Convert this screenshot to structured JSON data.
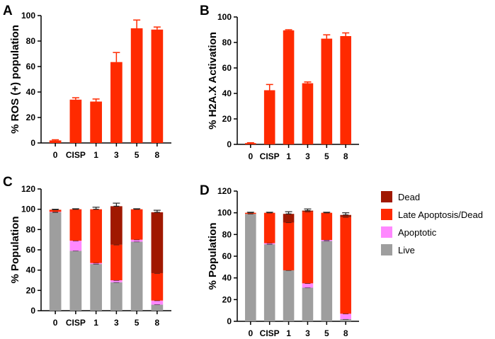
{
  "colors": {
    "red": "#ff2a00",
    "dead": "#a01800",
    "apoptotic": "#ff88ff",
    "live": "#9e9e9e",
    "axis": "#000000"
  },
  "chart_data": [
    {
      "panel": "A",
      "type": "bar",
      "categories": [
        "0",
        "CISP",
        "1",
        "3",
        "5",
        "8"
      ],
      "values": [
        2,
        34,
        32.5,
        63.5,
        90,
        89
      ],
      "errors": [
        0.5,
        1.5,
        2,
        7.5,
        6.5,
        2
      ],
      "ylabel": "% ROS (+) population",
      "xlabel": "",
      "ylim": [
        0,
        100
      ],
      "yticks": [
        0,
        20,
        40,
        60,
        80,
        100
      ],
      "grid": false
    },
    {
      "panel": "B",
      "type": "bar",
      "categories": [
        "0",
        "CISP",
        "1",
        "3",
        "5",
        "8"
      ],
      "values": [
        1,
        42.5,
        89.5,
        48,
        83,
        85
      ],
      "errors": [
        0.3,
        4.5,
        0.5,
        1,
        3,
        2.5
      ],
      "ylabel": "% H2A.X Activation",
      "xlabel": "",
      "ylim": [
        0,
        100
      ],
      "yticks": [
        0,
        20,
        40,
        60,
        80,
        100
      ],
      "grid": false
    },
    {
      "panel": "C",
      "type": "bar",
      "stacked": true,
      "categories": [
        "0",
        "CISP",
        "1",
        "3",
        "5",
        "8"
      ],
      "series": [
        {
          "name": "Live",
          "values": [
            97,
            59,
            46,
            28,
            68,
            6
          ]
        },
        {
          "name": "Apoptotic",
          "values": [
            0.5,
            10,
            1,
            2,
            2,
            4
          ]
        },
        {
          "name": "Late Apoptosis/Dead",
          "values": [
            2,
            31,
            53,
            35,
            30,
            27
          ]
        },
        {
          "name": "Dead",
          "values": [
            0,
            0,
            0,
            38,
            0,
            60
          ]
        }
      ],
      "errors": [
        0.5,
        0.5,
        2,
        3,
        0.5,
        2
      ],
      "ylabel": "% Population",
      "xlabel": "",
      "ylim": [
        0,
        120
      ],
      "yticks": [
        0,
        20,
        40,
        60,
        80,
        100,
        120
      ],
      "grid": false
    },
    {
      "panel": "D",
      "type": "bar",
      "stacked": true,
      "categories": [
        "0",
        "CISP",
        "1",
        "3",
        "5",
        "8"
      ],
      "series": [
        {
          "name": "Live",
          "values": [
            99,
            71,
            47,
            31,
            74,
            2
          ]
        },
        {
          "name": "Apoptotic",
          "values": [
            0,
            1,
            0,
            4,
            1,
            5
          ]
        },
        {
          "name": "Late Apoptosis/Dead",
          "values": [
            1,
            28,
            44,
            66,
            25,
            89
          ]
        },
        {
          "name": "Dead",
          "values": [
            0,
            0,
            8,
            1,
            0,
            2
          ]
        }
      ],
      "errors": [
        0.5,
        0.5,
        2,
        1.5,
        0.5,
        2
      ],
      "ylabel": "% Population",
      "xlabel": "",
      "ylim": [
        0,
        120
      ],
      "yticks": [
        0,
        20,
        40,
        60,
        80,
        100,
        120
      ],
      "grid": false
    }
  ],
  "legend": {
    "placement": "right",
    "items": [
      {
        "name": "Dead",
        "color": "#a01800"
      },
      {
        "name": "Late Apoptosis/Dead",
        "color": "#ff2a00"
      },
      {
        "name": "Apoptotic",
        "color": "#ff88ff"
      },
      {
        "name": "Live",
        "color": "#9e9e9e"
      }
    ]
  }
}
